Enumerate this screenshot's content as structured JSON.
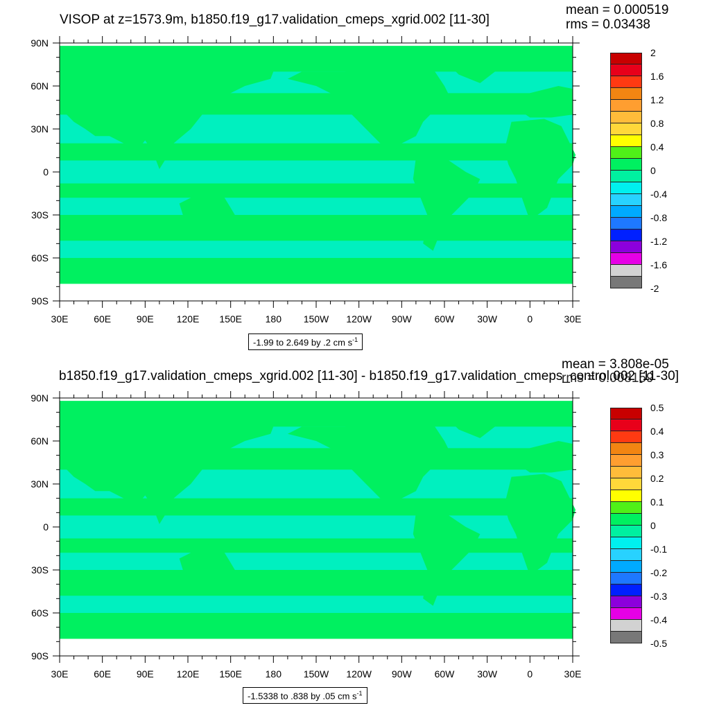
{
  "panels": [
    {
      "title": "VISOP at z=1573.9m, b1850.f19_g17.validation_cmeps_xgrid.002 [11-30]",
      "mean": "mean = 0.000519",
      "rms": "rms = 0.03438",
      "info_text": "-1.99 to 2.649 by .2 cm s",
      "info_unit_exp": "-1"
    },
    {
      "title": "b1850.f19_g17.validation_cmeps_xgrid.002 [11-30] - b1850.f19_g17.validation_cmeps_control.002 [11-30]",
      "mean": "mean = 3.808e-05",
      "rms": "rms = 0.008159",
      "info_text": "-1.5338 to .838 by .05 cm s",
      "info_unit_exp": "-1"
    }
  ],
  "colors": {
    "land_fill": "#00f060",
    "ocean_negative": "#00f0d0",
    "outline": "#000000"
  },
  "chart_data": [
    {
      "type": "heatmap",
      "title": "VISOP at z=1573.9m, b1850.f19_g17.validation_cmeps_xgrid.002 [11-30]",
      "x_tick_labels": [
        "30E",
        "60E",
        "90E",
        "120E",
        "150E",
        "180",
        "150W",
        "120W",
        "90W",
        "60W",
        "30W",
        "0",
        "30E"
      ],
      "y_tick_labels": [
        "90N",
        "60N",
        "30N",
        "0",
        "30S",
        "60S",
        "90S"
      ],
      "xlim": [
        30,
        390
      ],
      "ylim": [
        -90,
        90
      ],
      "colorbar": {
        "labels": [
          "2",
          "1.6",
          "1.2",
          "0.8",
          "0.4",
          "0",
          "-0.4",
          "-0.8",
          "-1.2",
          "-1.6",
          "-2"
        ],
        "colors": [
          "#c80000",
          "#e8001a",
          "#ff3a12",
          "#f28512",
          "#ff9e30",
          "#ffbc3a",
          "#ffd83a",
          "#ffff00",
          "#50f018",
          "#00f060",
          "#00f0a0",
          "#00f0ee",
          "#28d2ff",
          "#00aaff",
          "#1e78ff",
          "#0020ff",
          "#8c00dc",
          "#e600e6",
          "#d2d2d2",
          "#787878"
        ]
      },
      "mean": 0.000519,
      "rms": 0.03438,
      "contour_min": -1.99,
      "contour_max": 2.649,
      "contour_interval": 0.2,
      "units": "cm s-1"
    },
    {
      "type": "heatmap",
      "title": "b1850.f19_g17.validation_cmeps_xgrid.002 [11-30] - b1850.f19_g17.validation_cmeps_control.002 [11-30]",
      "x_tick_labels": [
        "30E",
        "60E",
        "90E",
        "120E",
        "150E",
        "180",
        "150W",
        "120W",
        "90W",
        "60W",
        "30W",
        "0",
        "30E"
      ],
      "y_tick_labels": [
        "90N",
        "60N",
        "30N",
        "0",
        "30S",
        "60S",
        "90S"
      ],
      "xlim": [
        30,
        390
      ],
      "ylim": [
        -90,
        90
      ],
      "colorbar": {
        "labels": [
          "0.5",
          "0.4",
          "0.3",
          "0.2",
          "0.1",
          "0",
          "-0.1",
          "-0.2",
          "-0.3",
          "-0.4",
          "-0.5"
        ],
        "colors": [
          "#c80000",
          "#e8001a",
          "#ff3a12",
          "#f28512",
          "#ff9e30",
          "#ffbc3a",
          "#ffd83a",
          "#ffff00",
          "#50f018",
          "#00f060",
          "#00f0a0",
          "#00f0ee",
          "#28d2ff",
          "#00aaff",
          "#1e78ff",
          "#0020ff",
          "#8c00dc",
          "#e600e6",
          "#d2d2d2",
          "#787878"
        ]
      },
      "mean": 3.808e-05,
      "rms": 0.008159,
      "contour_min": -1.5338,
      "contour_max": 0.838,
      "contour_interval": 0.05,
      "units": "cm s-1"
    }
  ]
}
